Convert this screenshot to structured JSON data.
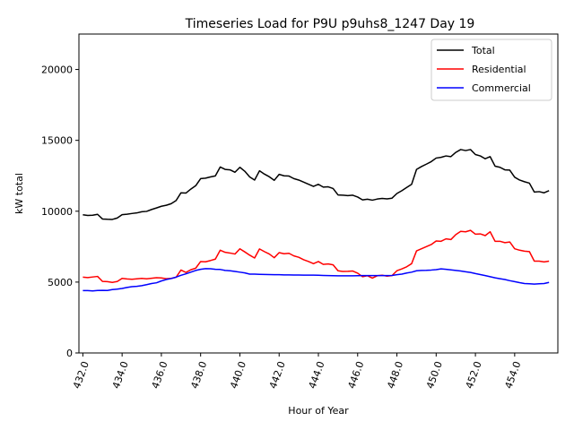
{
  "chart_data": {
    "type": "line",
    "title": "Timeseries Load for P9U p9uhs8_1247  Day 19",
    "xlabel": "Hour of Year",
    "ylabel": "kW total",
    "xlim": [
      431.8,
      456.2
    ],
    "ylim": [
      0,
      22500
    ],
    "xticks": [
      432,
      434,
      436,
      438,
      440,
      442,
      444,
      446,
      448,
      450,
      452,
      454
    ],
    "xtick_labels": [
      "432.0",
      "434.0",
      "436.0",
      "438.0",
      "440.0",
      "442.0",
      "444.0",
      "446.0",
      "448.0",
      "450.0",
      "452.0",
      "454.0"
    ],
    "yticks": [
      0,
      5000,
      10000,
      15000,
      20000
    ],
    "ytick_labels": [
      "0",
      "5000",
      "10000",
      "15000",
      "20000"
    ],
    "legend_position": "top-right",
    "x_start": 432,
    "x_step": 0.25,
    "series": [
      {
        "name": "Total",
        "color": "#000000",
        "values": [
          9750,
          9700,
          9720,
          9780,
          9450,
          9430,
          9420,
          9520,
          9760,
          9790,
          9840,
          9880,
          9960,
          9990,
          10120,
          10230,
          10350,
          10420,
          10530,
          10750,
          11300,
          11280,
          11560,
          11800,
          12300,
          12330,
          12420,
          12490,
          13120,
          12950,
          12920,
          12750,
          13100,
          12820,
          12420,
          12200,
          12850,
          12620,
          12430,
          12180,
          12600,
          12500,
          12480,
          12300,
          12200,
          12050,
          11900,
          11750,
          11900,
          11700,
          11720,
          11600,
          11150,
          11130,
          11100,
          11130,
          11000,
          10800,
          10850,
          10780,
          10860,
          10900,
          10870,
          10920,
          11250,
          11450,
          11680,
          11900,
          12950,
          13150,
          13320,
          13500,
          13750,
          13800,
          13900,
          13850,
          14150,
          14350,
          14280,
          14350,
          14000,
          13900,
          13700,
          13850,
          13180,
          13100,
          12920,
          12900,
          12400,
          12200,
          12080,
          11980,
          11350,
          11380,
          11300,
          11450
        ]
      },
      {
        "name": "Residential",
        "color": "#ff0000",
        "values": [
          5350,
          5320,
          5360,
          5400,
          5050,
          5030,
          4980,
          5040,
          5260,
          5220,
          5200,
          5230,
          5260,
          5230,
          5270,
          5310,
          5290,
          5240,
          5260,
          5340,
          5850,
          5680,
          5870,
          5980,
          6450,
          6430,
          6520,
          6620,
          7250,
          7100,
          7050,
          6980,
          7350,
          7130,
          6900,
          6700,
          7340,
          7150,
          6980,
          6720,
          7080,
          7000,
          7030,
          6850,
          6750,
          6580,
          6450,
          6300,
          6450,
          6250,
          6280,
          6220,
          5800,
          5750,
          5760,
          5780,
          5630,
          5380,
          5450,
          5280,
          5450,
          5480,
          5420,
          5460,
          5800,
          5930,
          6080,
          6300,
          7200,
          7350,
          7500,
          7650,
          7900,
          7880,
          8050,
          8000,
          8350,
          8580,
          8550,
          8650,
          8380,
          8400,
          8280,
          8550,
          7880,
          7880,
          7780,
          7830,
          7350,
          7250,
          7180,
          7150,
          6480,
          6480,
          6420,
          6480
        ]
      },
      {
        "name": "Commercial",
        "color": "#0000ff",
        "values": [
          4400,
          4400,
          4380,
          4410,
          4420,
          4410,
          4470,
          4500,
          4550,
          4620,
          4680,
          4700,
          4750,
          4820,
          4900,
          4950,
          5080,
          5180,
          5250,
          5350,
          5480,
          5580,
          5700,
          5820,
          5900,
          5950,
          5940,
          5900,
          5890,
          5820,
          5800,
          5750,
          5700,
          5650,
          5560,
          5560,
          5550,
          5540,
          5530,
          5520,
          5520,
          5510,
          5510,
          5500,
          5500,
          5490,
          5490,
          5490,
          5480,
          5470,
          5460,
          5450,
          5440,
          5440,
          5440,
          5440,
          5450,
          5460,
          5460,
          5460,
          5460,
          5460,
          5460,
          5470,
          5520,
          5560,
          5640,
          5700,
          5800,
          5820,
          5830,
          5850,
          5880,
          5930,
          5900,
          5860,
          5820,
          5780,
          5730,
          5680,
          5600,
          5530,
          5460,
          5380,
          5300,
          5240,
          5180,
          5100,
          5030,
          4960,
          4900,
          4880,
          4860,
          4880,
          4900,
          4980
        ]
      }
    ]
  }
}
